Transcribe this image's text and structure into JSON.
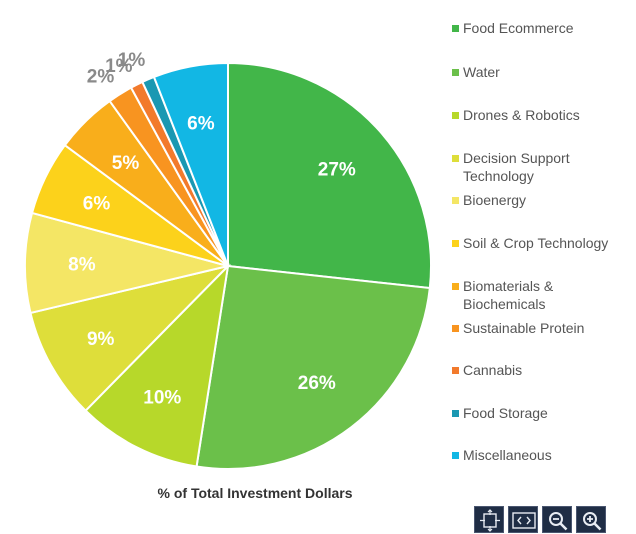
{
  "chart_data": {
    "type": "pie",
    "caption": "% of Total Investment Dollars",
    "slices": [
      {
        "label": "Food Ecommerce",
        "value": 27,
        "display": "27%",
        "color": "#42b649"
      },
      {
        "label": "Water",
        "value": 26,
        "display": "26%",
        "color": "#6bc04a"
      },
      {
        "label": "Drones & Robotics",
        "value": 10,
        "display": "10%",
        "color": "#b7d82a"
      },
      {
        "label": "Decision Support Technology",
        "value": 9,
        "display": "9%",
        "color": "#dede3a"
      },
      {
        "label": "Bioenergy",
        "value": 8,
        "display": "8%",
        "color": "#f4e665"
      },
      {
        "label": "Soil & Crop Technology",
        "value": 6,
        "display": "6%",
        "color": "#fcd21b"
      },
      {
        "label": "Biomaterials & Biochemicals",
        "value": 5,
        "display": "5%",
        "color": "#f9ae1b"
      },
      {
        "label": "Sustainable Protein",
        "value": 2,
        "display": "2%",
        "color": "#f89420"
      },
      {
        "label": "Cannabis",
        "value": 1,
        "display": "1%",
        "color": "#f27a2c"
      },
      {
        "label": "Food Storage",
        "value": 1,
        "display": "1%",
        "color": "#1a98b2"
      },
      {
        "label": "Miscellaneous",
        "value": 6,
        "display": "6%",
        "color": "#12b7e4"
      }
    ],
    "legend_position": "right",
    "start_angle": "12 o'clock, clockwise"
  },
  "toolbar": {
    "buttons": [
      {
        "name": "fullscreen-expand-icon"
      },
      {
        "name": "fit-width-icon"
      },
      {
        "name": "zoom-out-icon"
      },
      {
        "name": "zoom-in-icon"
      }
    ]
  }
}
